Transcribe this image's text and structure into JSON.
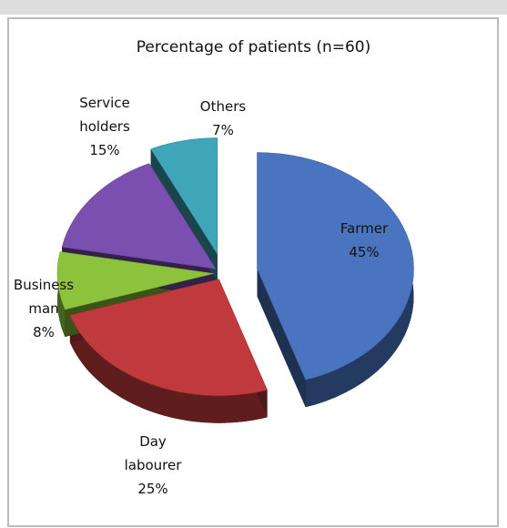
{
  "chart_data": {
    "type": "pie",
    "title": "Percentage of patients (n=60)",
    "categories": [
      "Farmer",
      "Day labourer",
      "Business man",
      "Service holders",
      "Others"
    ],
    "values": [
      45,
      25,
      8,
      15,
      7
    ],
    "value_labels": [
      "45%",
      "25%",
      "8%",
      "15%",
      "7%"
    ],
    "colors": [
      "#4a74c0",
      "#c0393c",
      "#8dc33c",
      "#7a4fb0",
      "#3fa5b8"
    ]
  }
}
